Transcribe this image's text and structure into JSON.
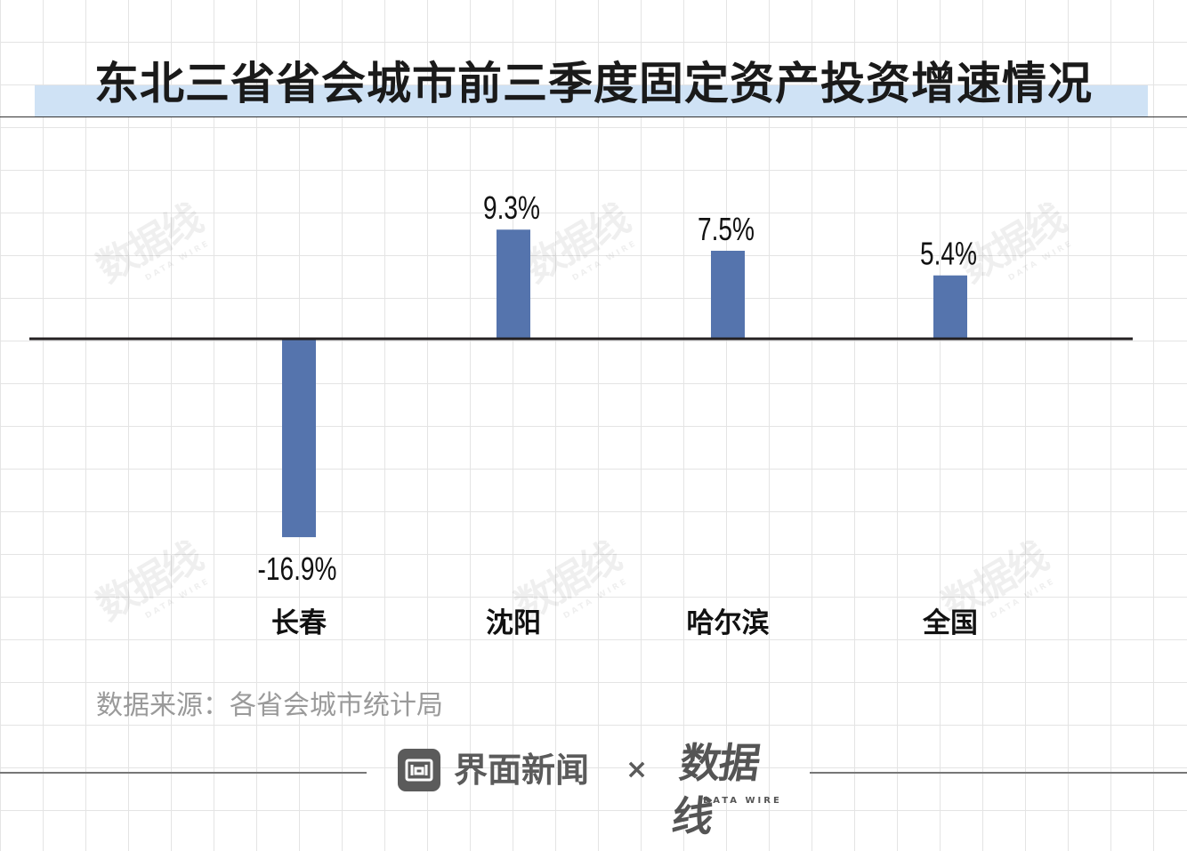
{
  "title": "东北三省省会城市前三季度固定资产投资增速情况",
  "source": "数据来源：各省会城市统计局",
  "footer": {
    "brand": "界面新闻",
    "separator": "×",
    "partner_logo": "数据线",
    "partner_logo_sub": "DATA WIRE"
  },
  "watermark": {
    "text": "数据线",
    "sub": "DATA WIRE"
  },
  "colors": {
    "bar": "#5574ad",
    "title_band": "#cfe2f5",
    "grid": "#e4e4e4",
    "axis": "#231f20",
    "source_text": "#9a9a9a",
    "footer_gray": "#5b5b5b"
  },
  "icons": {
    "brand_logo": "jiemian-logo-icon"
  },
  "chart_data": {
    "type": "bar",
    "categories": [
      "长春",
      "沈阳",
      "哈尔滨",
      "全国"
    ],
    "values": [
      -16.9,
      9.3,
      7.5,
      5.4
    ],
    "value_labels": [
      "-16.9%",
      "9.3%",
      "7.5%",
      "5.4%"
    ],
    "unit": "%",
    "xlabel": "",
    "ylabel": "",
    "ylim": [
      -16.9,
      9.3
    ],
    "grid": true,
    "legend": "none"
  }
}
